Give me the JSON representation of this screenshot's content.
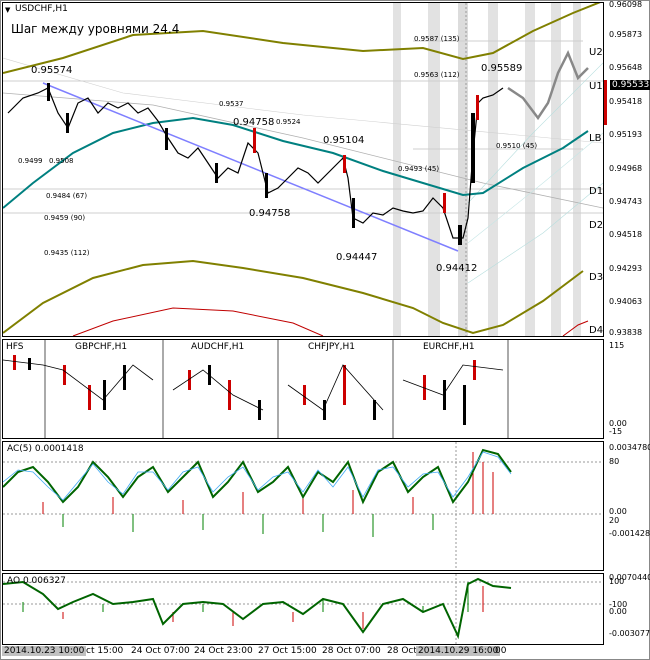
{
  "symbol_title": "USDCHF,H1",
  "grid_step_text": "Шаг между уровнями 24.4",
  "main_price_ticks": [
    "0.96098",
    "0.95873",
    "0.95648",
    "0.95418",
    "0.95193",
    "0.94968",
    "0.94743",
    "0.94518",
    "0.94293",
    "0.94063",
    "0.93838"
  ],
  "current_price": "0.95533",
  "level_names": [
    "U2",
    "U1",
    "LB",
    "D1",
    "D2",
    "D3",
    "D4"
  ],
  "price_labels": [
    "0.95574",
    "0.94758",
    "0.95104",
    "0.94758",
    "0.94447",
    "0.94412",
    "0.95589"
  ],
  "small_labels": [
    "0.9537",
    "0.9524",
    "0.9499",
    "0.9508",
    "0.9484 (67)",
    "0.9459 (90)",
    "0.9435 (112)",
    "0.9493 (45)",
    "0.9587 (135)",
    "0.9563 (112)",
    "0.9510 (45)"
  ],
  "pairs": [
    "HFS",
    "GBPCHF,H1",
    "AUDCHF,H1",
    "CHFJPY,H1",
    "EURCHF,H1"
  ],
  "pairs_axis": [
    "115",
    "0.00",
    "-15"
  ],
  "ac_title": "AC(5) 0.0001418",
  "ac_axis": [
    "0.0034780",
    "80",
    "0.00",
    "20",
    "-0.0014280"
  ],
  "ao_title": "AO 0.006327",
  "ao_axis": [
    "0.0070440",
    "100",
    "-100",
    "0.00",
    "-0.0030770"
  ],
  "time_labels": [
    "2014.10.23 10:00",
    "ct 15:00",
    "24 Oct 07:00",
    "24 Oct 23:00",
    "27 Oct 15:00",
    "28 Oct 07:00",
    "28 Oct",
    "2014.10.29 16:00",
    "00"
  ]
}
